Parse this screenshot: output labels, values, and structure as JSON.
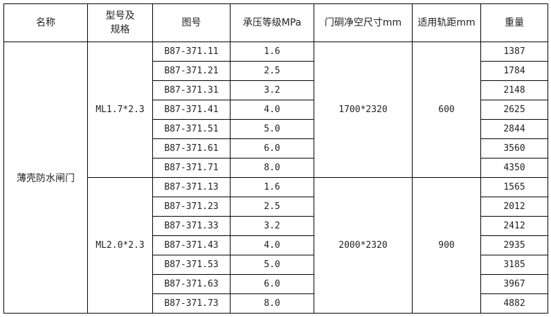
{
  "headers": [
    "名称",
    "型号及规格",
    "图号",
    "承压等级MPa",
    "门硐净空尺寸mm",
    "适用轨距mm",
    "重量"
  ],
  "name": "薄壳防水闸门",
  "groups": [
    {
      "model": "ML1.7*2.3",
      "size": "1700*2320",
      "gauge": "600",
      "rows": [
        [
          "B87-371.11",
          "1.6",
          "1387"
        ],
        [
          "B87-371.21",
          "2.5",
          "1784"
        ],
        [
          "B87-371.31",
          "3.2",
          "2148"
        ],
        [
          "B87-371.41",
          "4.0",
          "2625"
        ],
        [
          "B87-371.51",
          "5.0",
          "2844"
        ],
        [
          "B87-371.61",
          "6.0",
          "3560"
        ],
        [
          "B87-371.71",
          "8.0",
          "4350"
        ]
      ]
    },
    {
      "model": "ML2.0*2.3",
      "size": "2000*2320",
      "gauge": "900",
      "rows": [
        [
          "B87-371.13",
          "1.6",
          "1565"
        ],
        [
          "B87-371.23",
          "2.5",
          "2012"
        ],
        [
          "B87-371.33",
          "3.2",
          "2412"
        ],
        [
          "B87-371.43",
          "4.0",
          "2935"
        ],
        [
          "B87-371.53",
          "5.0",
          "3185"
        ],
        [
          "B87-371.63",
          "6.0",
          "3967"
        ],
        [
          "B87-371.73",
          "8.0",
          "4882"
        ]
      ]
    }
  ]
}
